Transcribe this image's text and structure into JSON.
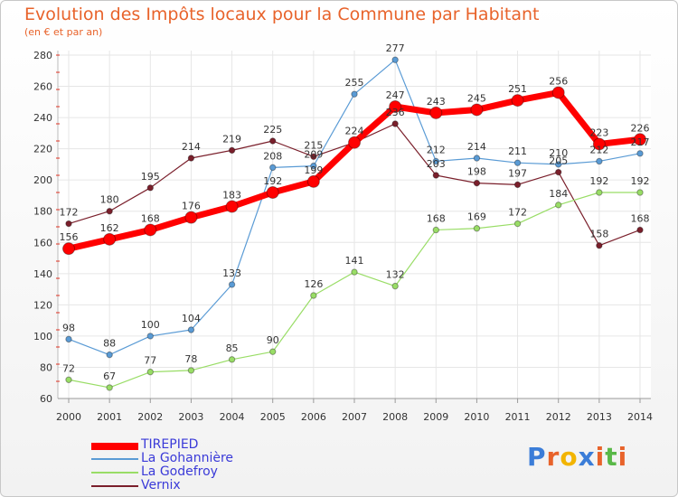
{
  "chart_data": {
    "type": "line",
    "title": "Evolution des Impôts locaux pour la Commune par Habitant",
    "subtitle": "(en € et par an)",
    "categories": [
      "2000",
      "2001",
      "2002",
      "2003",
      "2004",
      "2005",
      "2006",
      "2007",
      "2008",
      "2009",
      "2010",
      "2011",
      "2012",
      "2013",
      "2014"
    ],
    "ylim": [
      60,
      280
    ],
    "yticks": [
      60,
      80,
      100,
      120,
      140,
      160,
      180,
      200,
      220,
      240,
      260,
      280
    ],
    "grid": true,
    "legend_position": "bottom-left",
    "series": [
      {
        "name": "Vernix",
        "color": "#7a1f2b",
        "width": 1.2,
        "marker": 3.2,
        "values": [
          172,
          180,
          195,
          214,
          219,
          225,
          215,
          224,
          236,
          203,
          198,
          197,
          205,
          158,
          168
        ],
        "labels": [
          "172",
          "180",
          "195",
          "214",
          "219",
          "225",
          "215",
          "",
          "236",
          "203",
          "198",
          "197",
          "205",
          "158",
          "168"
        ]
      },
      {
        "name": "La Godefroy",
        "color": "#99dd66",
        "width": 1.2,
        "marker": 3.2,
        "values": [
          72,
          67,
          77,
          78,
          85,
          90,
          126,
          141,
          132,
          168,
          169,
          172,
          184,
          192,
          192
        ],
        "labels": [
          "72",
          "67",
          "77",
          "78",
          "85",
          "90",
          "126",
          "141",
          "132",
          "168",
          "169",
          "172",
          "184",
          "192",
          "192"
        ]
      },
      {
        "name": "La Gohannière",
        "color": "#5a9bd5",
        "width": 1.2,
        "marker": 3.2,
        "values": [
          98,
          88,
          100,
          104,
          133,
          208,
          209,
          255,
          277,
          212,
          214,
          211,
          210,
          212,
          217
        ],
        "labels": [
          "98",
          "88",
          "100",
          "104",
          "133",
          "208",
          "209",
          "255",
          "277",
          "212",
          "214",
          "211",
          "210",
          "212",
          "217"
        ]
      },
      {
        "name": "TIREPIED",
        "color": "#ff0000",
        "width": 7,
        "marker": 6.5,
        "values": [
          156,
          162,
          168,
          176,
          183,
          192,
          199,
          224,
          247,
          243,
          245,
          251,
          256,
          223,
          226
        ],
        "labels": [
          "156",
          "162",
          "168",
          "176",
          "183",
          "192",
          "199",
          "224",
          "247",
          "243",
          "245",
          "251",
          "256",
          "223",
          "226"
        ]
      }
    ]
  },
  "legend": {
    "items": [
      {
        "label": "TIREPIED",
        "color": "#ff0000"
      },
      {
        "label": "La Gohannière",
        "color": "#5a9bd5"
      },
      {
        "label": "La Godefroy",
        "color": "#99dd66"
      },
      {
        "label": "Vernix",
        "color": "#7a1f2b"
      }
    ]
  },
  "logo": {
    "letters": [
      "P",
      "r",
      "o",
      "x",
      "i",
      "t",
      "i"
    ],
    "colors": [
      "#3b7dd8",
      "#e8632b",
      "#f2b400",
      "#3b7dd8",
      "#e8632b",
      "#59b848",
      "#e8632b"
    ]
  }
}
